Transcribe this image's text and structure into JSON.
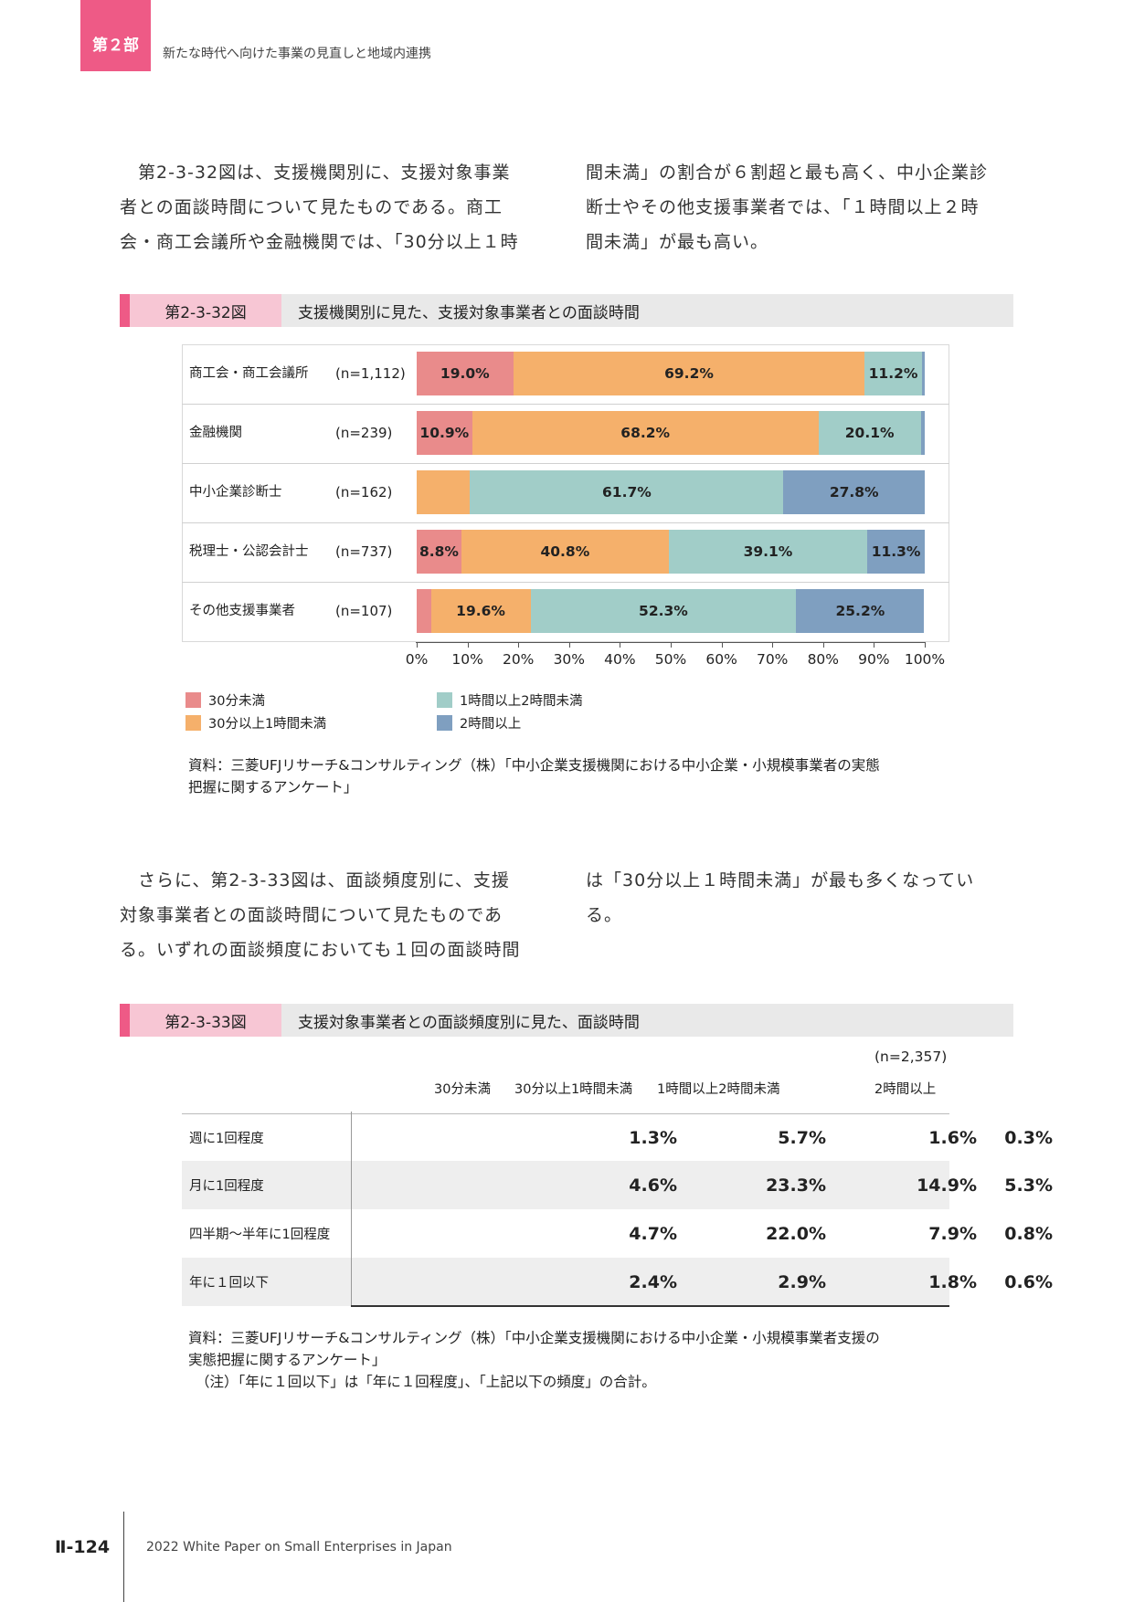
{
  "header": {
    "part": "第２部",
    "title": "新たな時代へ向けた事業の見直しと地域内連携"
  },
  "para1": {
    "left": [
      "　第2-3-32図は、支援機関別に、支援対象事業",
      "者との面談時間について見たものである。商工",
      "会・商工会議所や金融機関では、「30分以上１時"
    ],
    "right": [
      "間未満」の割合が６割超と最も高く、中小企業診",
      "断士やその他支援事業者では、「１時間以上２時",
      "間未満」が最も高い。"
    ]
  },
  "fig1": {
    "number": "第2-3-32図",
    "title": "支援機関別に見た、支援対象事業者との面談時間"
  },
  "chart_data": {
    "type": "bar",
    "orientation": "horizontal-stacked-100",
    "categories": [
      "商工会・商工会議所",
      "金融機関",
      "中小企業診断士",
      "税理士・公認会計士",
      "その他支援事業者"
    ],
    "n_labels": [
      "(n=1,112)",
      "(n=239)",
      "(n=162)",
      "(n=737)",
      "(n=107)"
    ],
    "series": [
      {
        "name": "30分未満",
        "color": "#e98b8b",
        "values": [
          19.0,
          10.9,
          0.0,
          8.8,
          2.8
        ],
        "labels": [
          "19.0%",
          "10.9%",
          "",
          "8.8%",
          ""
        ]
      },
      {
        "name": "30分以上1時間未満",
        "color": "#f5b06b",
        "values": [
          69.2,
          68.2,
          10.5,
          40.8,
          19.6
        ],
        "labels": [
          "69.2%",
          "68.2%",
          "",
          "40.8%",
          "19.6%"
        ]
      },
      {
        "name": "1時間以上2時間未満",
        "color": "#a1cdc8",
        "values": [
          11.2,
          20.1,
          61.7,
          39.1,
          52.3
        ],
        "labels": [
          "11.2%",
          "20.1%",
          "61.7%",
          "39.1%",
          "52.3%"
        ]
      },
      {
        "name": "2時間以上",
        "color": "#7f9fc0",
        "values": [
          0.6,
          0.8,
          27.8,
          11.3,
          25.2
        ],
        "labels": [
          "",
          "",
          "27.8%",
          "11.3%",
          "25.2%"
        ]
      }
    ],
    "xlim": [
      0,
      100
    ],
    "x_ticks": [
      "0%",
      "10%",
      "20%",
      "30%",
      "40%",
      "50%",
      "60%",
      "70%",
      "80%",
      "90%",
      "100%"
    ]
  },
  "source1": [
    "資料：三菱UFJリサーチ&コンサルティング（株）「中小企業支援機関における中小企業・小規模事業者の実態",
    "把握に関するアンケート」"
  ],
  "para2": {
    "left": [
      "　さらに、第2-3-33図は、面談頻度別に、支援",
      "対象事業者との面談時間について見たものであ",
      "る。いずれの面談頻度においても１回の面談時間"
    ],
    "right": [
      "は「30分以上１時間未満」が最も多くなってい",
      "る。"
    ]
  },
  "fig2": {
    "number": "第2-3-33図",
    "title": "支援対象事業者との面談頻度別に見た、面談時間"
  },
  "table": {
    "n_note": "(n=2,357)",
    "columns": [
      "30分未満",
      "30分以上1時間未満",
      "1時間以上2時間未満",
      "2時間以上"
    ],
    "rows": [
      {
        "label": "週に1回程度",
        "values": [
          "1.3%",
          "5.7%",
          "1.6%",
          "0.3%"
        ]
      },
      {
        "label": "月に1回程度",
        "values": [
          "4.6%",
          "23.3%",
          "14.9%",
          "5.3%"
        ]
      },
      {
        "label": "四半期～半年に1回程度",
        "values": [
          "4.7%",
          "22.0%",
          "7.9%",
          "0.8%"
        ]
      },
      {
        "label": "年に１回以下",
        "values": [
          "2.4%",
          "2.9%",
          "1.8%",
          "0.6%"
        ]
      }
    ]
  },
  "source2": [
    "資料：三菱UFJリサーチ&コンサルティング（株）「中小企業支援機関における中小企業・小規模事業者支援の",
    "実態把握に関するアンケート」",
    "（注）「年に１回以下」は「年に１回程度」、「上記以下の頻度」の合計。"
  ],
  "footer": {
    "page": "Ⅱ-124",
    "text": "2022 White Paper on Small Enterprises in Japan"
  }
}
